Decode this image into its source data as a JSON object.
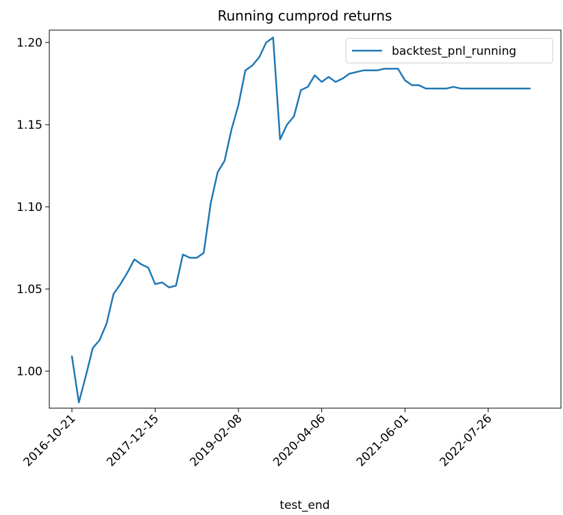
{
  "chart_data": {
    "type": "line",
    "title": "Running cumprod returns",
    "xlabel": "test_end",
    "ylabel": "",
    "x_ticks": [
      "2016-10-21",
      "2017-12-15",
      "2019-02-08",
      "2020-04-06",
      "2021-06-01",
      "2022-07-26"
    ],
    "y_ticks": [
      "1.00",
      "1.05",
      "1.10",
      "1.15",
      "1.20"
    ],
    "ylim": [
      0.9775,
      1.2075
    ],
    "legend_position": "upper right",
    "grid": false,
    "series": [
      {
        "name": "backtest_pnl_running",
        "color": "#1f77b4",
        "index": [
          0,
          1,
          2,
          3,
          4,
          5,
          6,
          7,
          8,
          9,
          10,
          11,
          12,
          13,
          14,
          15,
          16,
          17,
          18,
          19,
          20,
          21,
          22,
          23,
          24,
          25,
          26,
          27,
          28,
          29,
          30,
          31,
          32,
          33,
          34,
          35,
          36,
          37,
          38,
          39,
          40,
          41,
          42,
          43,
          44,
          45,
          46,
          47,
          48,
          49,
          50,
          51,
          52,
          53,
          54,
          55,
          56,
          57,
          58,
          59,
          60,
          61,
          62,
          63,
          64,
          65,
          66
        ],
        "values": [
          1.009,
          0.981,
          0.997,
          1.014,
          1.019,
          1.029,
          1.047,
          1.053,
          1.06,
          1.068,
          1.065,
          1.063,
          1.053,
          1.054,
          1.051,
          1.052,
          1.071,
          1.069,
          1.069,
          1.072,
          1.102,
          1.121,
          1.128,
          1.147,
          1.162,
          1.183,
          1.186,
          1.191,
          1.2,
          1.203,
          1.141,
          1.15,
          1.155,
          1.171,
          1.173,
          1.18,
          1.176,
          1.179,
          1.176,
          1.178,
          1.181,
          1.182,
          1.183,
          1.183,
          1.183,
          1.184,
          1.184,
          1.184,
          1.177,
          1.174,
          1.174,
          1.172,
          1.172,
          1.172,
          1.172,
          1.173,
          1.172,
          1.172,
          1.172,
          1.172,
          1.172,
          1.172,
          1.172,
          1.172,
          1.172,
          1.172,
          1.172
        ]
      }
    ]
  }
}
